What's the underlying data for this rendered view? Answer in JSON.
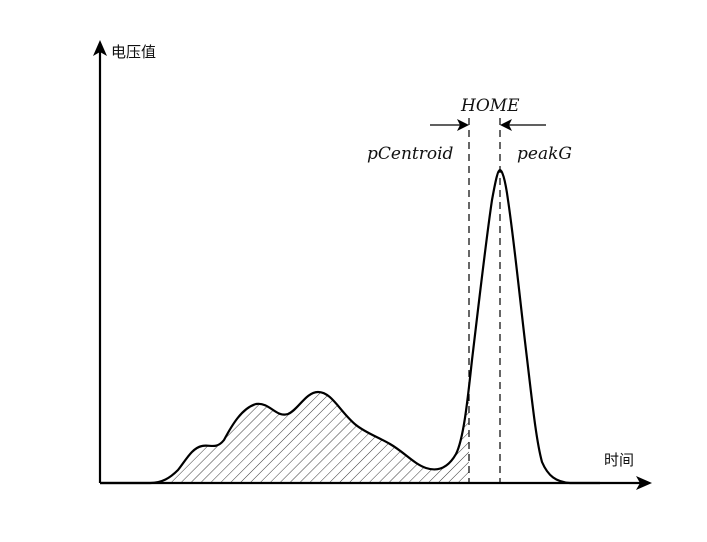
{
  "y_axis_label": "电压值",
  "x_axis_label": "时间",
  "labels": {
    "home": "HOME",
    "p_centroid": "pCentroid",
    "peak_g": "peakG"
  },
  "colors": {
    "stroke": "#000000",
    "hatch": "#3a3a3a",
    "background": "#ffffff"
  },
  "icons": {
    "left_arrow": "arrow-right-icon",
    "right_arrow": "arrow-left-icon"
  }
}
